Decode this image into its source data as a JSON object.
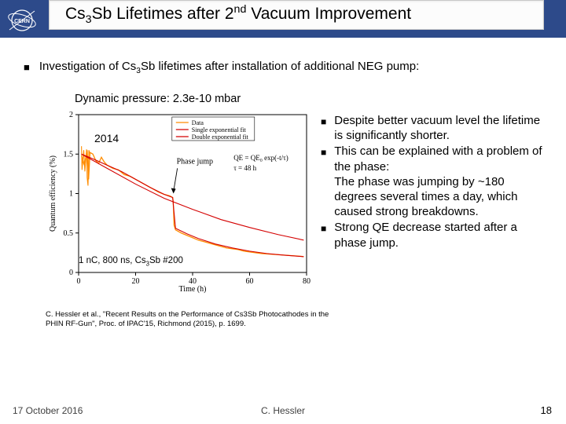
{
  "title_html": "Cs<sub>3</sub>Sb Lifetimes after 2<sup>nd</sup> Vacuum Improvement",
  "main_bullet_html": "Investigation of Cs<sub>3</sub>Sb lifetimes after installation of additional NEG pump:",
  "dyn_pressure": "Dynamic pressure: 2.3e-10 mbar",
  "chart_year": "2014",
  "chart_cond_html": "1 nC, 800 ns, Cs<sub>3</sub>Sb #200",
  "right_bullets": [
    "Despite better vacuum level the lifetime is significantly shorter.",
    "This can be explained with a problem of the phase:\nThe phase was jumping by ~180 degrees several times a day, which caused strong breakdowns.",
    "Strong QE decrease started after a phase jump."
  ],
  "citation": "C. Hessler et al., \"Recent Results on the Performance of Cs3Sb Photocathodes in the PHIN RF-Gun\", Proc. of IPAC'15, Richmond (2015), p. 1699.",
  "footer_date": "17 October 2016",
  "footer_author": "C. Hessler",
  "footer_page": "18",
  "chart": {
    "xlabel": "Time (h)",
    "ylabel": "Quantum efficiency (%)",
    "xlim": [
      0,
      80
    ],
    "ylim": [
      0,
      2
    ],
    "xticks": [
      0,
      20,
      40,
      60,
      80
    ],
    "yticks": [
      0,
      0.5,
      1,
      1.5,
      2
    ],
    "legend": [
      "Data",
      "Single exponential fit",
      "Double exponential fit"
    ],
    "legend_colors": [
      "#ff8c00",
      "#d40000",
      "#d40000"
    ],
    "equation_lines": [
      "QE = QE₀ exp(-t/τ)",
      "τ = 48 h"
    ],
    "phase_jump_x": 33,
    "phase_jump_label": "Phase jump",
    "data_color": "#ff8c00",
    "fit_single_color": "#d40000",
    "fit_double_color": "#d40000",
    "axis_color": "#000000",
    "background": "#ffffff",
    "data_points_xy": [
      [
        1,
        1.48
      ],
      [
        2,
        1.36
      ],
      [
        3,
        1.55
      ],
      [
        3.5,
        1.18
      ],
      [
        4,
        1.52
      ],
      [
        5,
        1.5
      ],
      [
        6,
        1.42
      ],
      [
        7,
        1.38
      ],
      [
        8,
        1.46
      ],
      [
        9,
        1.4
      ],
      [
        10,
        1.36
      ],
      [
        12,
        1.32
      ],
      [
        14,
        1.3
      ],
      [
        16,
        1.24
      ],
      [
        18,
        1.22
      ],
      [
        20,
        1.18
      ],
      [
        22,
        1.14
      ],
      [
        24,
        1.1
      ],
      [
        26,
        1.06
      ],
      [
        28,
        1.02
      ],
      [
        30,
        0.99
      ],
      [
        32,
        0.97
      ],
      [
        33,
        0.95
      ],
      [
        33.2,
        0.9
      ],
      [
        33.5,
        0.6
      ],
      [
        34,
        0.54
      ],
      [
        36,
        0.5
      ],
      [
        38,
        0.47
      ],
      [
        40,
        0.44
      ],
      [
        42,
        0.41
      ],
      [
        44,
        0.39
      ],
      [
        46,
        0.37
      ],
      [
        48,
        0.35
      ],
      [
        50,
        0.33
      ],
      [
        52,
        0.31
      ],
      [
        54,
        0.3
      ],
      [
        56,
        0.29
      ],
      [
        58,
        0.27
      ],
      [
        60,
        0.26
      ],
      [
        62,
        0.25
      ],
      [
        64,
        0.24
      ],
      [
        66,
        0.235
      ],
      [
        68,
        0.23
      ],
      [
        70,
        0.225
      ],
      [
        72,
        0.22
      ],
      [
        74,
        0.215
      ],
      [
        76,
        0.21
      ],
      [
        78,
        0.205
      ],
      [
        79,
        0.2
      ]
    ],
    "fit_single_xy": [
      [
        1,
        1.5
      ],
      [
        10,
        1.32
      ],
      [
        20,
        1.12
      ],
      [
        30,
        0.94
      ],
      [
        40,
        0.8
      ],
      [
        50,
        0.67
      ],
      [
        60,
        0.57
      ],
      [
        70,
        0.48
      ],
      [
        79,
        0.41
      ]
    ],
    "fit_double_xy": [
      [
        1,
        1.5
      ],
      [
        5,
        1.44
      ],
      [
        10,
        1.36
      ],
      [
        15,
        1.28
      ],
      [
        20,
        1.18
      ],
      [
        25,
        1.08
      ],
      [
        30,
        0.99
      ],
      [
        33,
        0.95
      ],
      [
        34,
        0.56
      ],
      [
        38,
        0.49
      ],
      [
        42,
        0.43
      ],
      [
        48,
        0.36
      ],
      [
        54,
        0.31
      ],
      [
        60,
        0.27
      ],
      [
        66,
        0.24
      ],
      [
        72,
        0.22
      ],
      [
        79,
        0.2
      ]
    ]
  }
}
